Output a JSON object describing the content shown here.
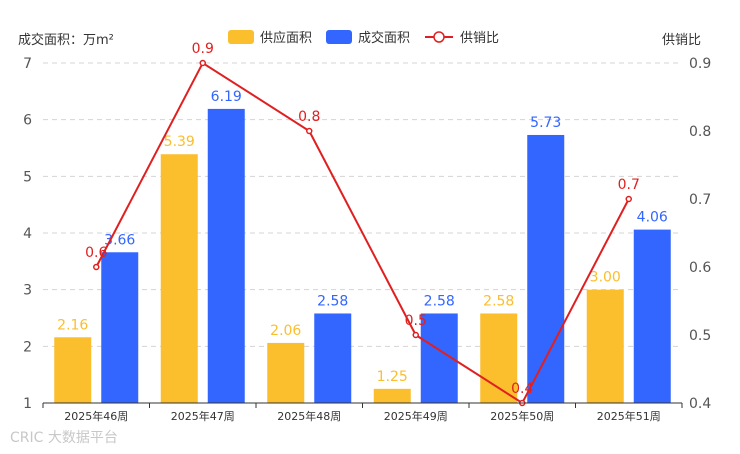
{
  "chart_data": {
    "type": "bar",
    "ylabel_left": "成交面积：万m²",
    "ylabel_right": "供销比",
    "ylim_left": [
      1,
      7
    ],
    "ylim_right": [
      0.4,
      0.9
    ],
    "yticks_left": [
      "1",
      "2",
      "3",
      "4",
      "5",
      "6",
      "7"
    ],
    "yticks_right": [
      "0.4",
      "0.5",
      "0.6",
      "0.7",
      "0.8",
      "0.9"
    ],
    "grid": true,
    "legend_position": "top",
    "categories": [
      "2025年46周",
      "2025年47周",
      "2025年48周",
      "2025年49周",
      "2025年50周",
      "2025年51周"
    ],
    "series": [
      {
        "name": "供应面积",
        "kind": "bar",
        "axis": "left",
        "color": "#FBBE2D",
        "values": [
          2.16,
          5.39,
          2.06,
          1.25,
          2.58,
          3.0
        ],
        "labels": [
          "2.16",
          "5.39",
          "2.06",
          "1.25",
          "2.58",
          "3.00"
        ]
      },
      {
        "name": "成交面积",
        "kind": "bar",
        "axis": "left",
        "color": "#3366FF",
        "values": [
          3.66,
          6.19,
          2.58,
          2.58,
          5.73,
          4.06
        ],
        "labels": [
          "3.66",
          "6.19",
          "2.58",
          "2.58",
          "5.73",
          "4.06"
        ]
      },
      {
        "name": "供销比",
        "kind": "line",
        "axis": "right",
        "color": "#E02020",
        "values": [
          0.6,
          0.9,
          0.8,
          0.5,
          0.4,
          0.7
        ],
        "labels": [
          "0.6",
          "0.9",
          "0.8",
          "0.5",
          "0.4",
          "0.7"
        ]
      }
    ]
  },
  "watermark": "CRIC 大数据平台"
}
